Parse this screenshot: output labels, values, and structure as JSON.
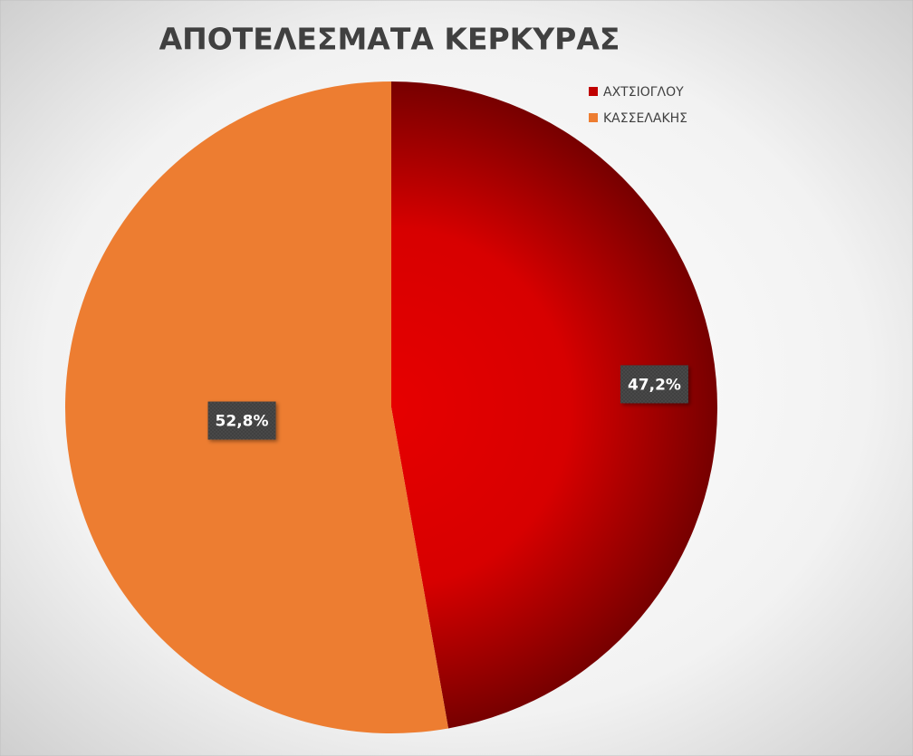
{
  "chart_data": {
    "type": "pie",
    "title": "ΑΠΟΤΕΛΕΣΜΑΤΑ ΚΕΡΚΥΡΑΣ",
    "categories": [
      "ΑΧΤΣΙΟΓΛΟΥ",
      "ΚΑΣΣΕΛΑΚΗΣ"
    ],
    "values": [
      47.2,
      52.8
    ],
    "value_labels": [
      "47,2%",
      "52,8%"
    ],
    "colors": [
      "#c00000",
      "#ed7d31"
    ],
    "legend": "top-right"
  }
}
